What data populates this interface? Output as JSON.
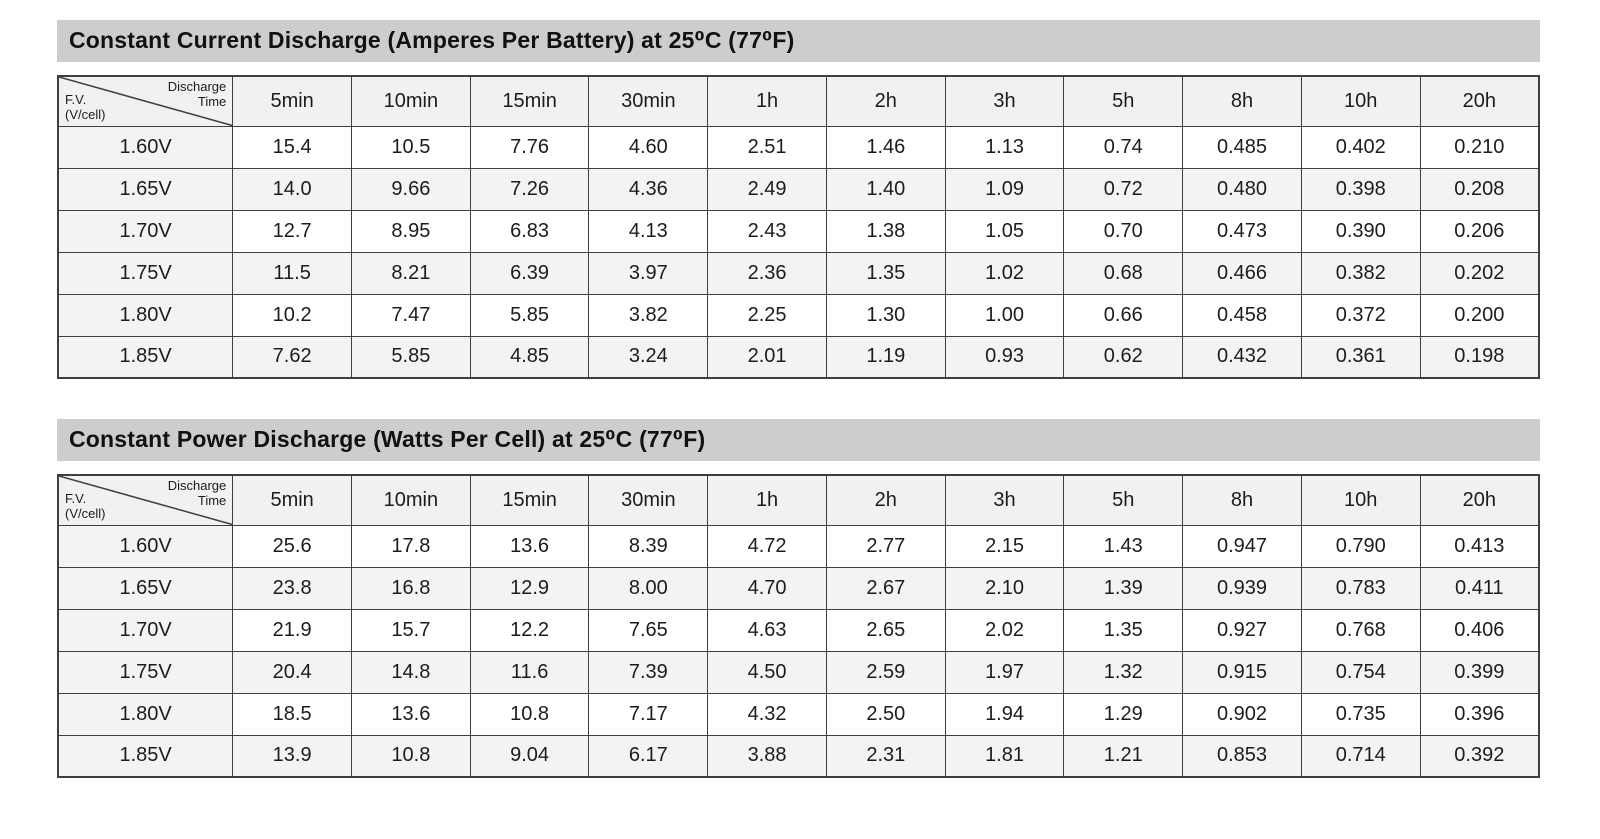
{
  "colors": {
    "title_bar_bg": "#cdcdcd",
    "header_row_bg": "#f1f1f1",
    "shaded_row_bg": "#f3f3f3",
    "row_bg": "#ffffff",
    "border": "#3f3f3f",
    "text": "#1c1c1c"
  },
  "tables": [
    {
      "title": "Constant Current Discharge (Amperes Per Battery) at 25⁰C (77⁰F)",
      "corner": {
        "top_right": "Discharge\nTime",
        "bottom_left": "F.V.\n(V/cell)"
      },
      "columns": [
        "5min",
        "10min",
        "15min",
        "30min",
        "1h",
        "2h",
        "3h",
        "5h",
        "8h",
        "10h",
        "20h"
      ],
      "rows": [
        {
          "label": "1.60V",
          "values": [
            "15.4",
            "10.5",
            "7.76",
            "4.60",
            "2.51",
            "1.46",
            "1.13",
            "0.74",
            "0.485",
            "0.402",
            "0.210"
          ]
        },
        {
          "label": "1.65V",
          "values": [
            "14.0",
            "9.66",
            "7.26",
            "4.36",
            "2.49",
            "1.40",
            "1.09",
            "0.72",
            "0.480",
            "0.398",
            "0.208"
          ]
        },
        {
          "label": "1.70V",
          "values": [
            "12.7",
            "8.95",
            "6.83",
            "4.13",
            "2.43",
            "1.38",
            "1.05",
            "0.70",
            "0.473",
            "0.390",
            "0.206"
          ]
        },
        {
          "label": "1.75V",
          "values": [
            "11.5",
            "8.21",
            "6.39",
            "3.97",
            "2.36",
            "1.35",
            "1.02",
            "0.68",
            "0.466",
            "0.382",
            "0.202"
          ]
        },
        {
          "label": "1.80V",
          "values": [
            "10.2",
            "7.47",
            "5.85",
            "3.82",
            "2.25",
            "1.30",
            "1.00",
            "0.66",
            "0.458",
            "0.372",
            "0.200"
          ]
        },
        {
          "label": "1.85V",
          "values": [
            "7.62",
            "5.85",
            "4.85",
            "3.24",
            "2.01",
            "1.19",
            "0.93",
            "0.62",
            "0.432",
            "0.361",
            "0.198"
          ]
        }
      ]
    },
    {
      "title": "Constant Power Discharge (Watts Per Cell) at 25⁰C (77⁰F)",
      "corner": {
        "top_right": "Discharge\nTime",
        "bottom_left": "F.V.\n(V/cell)"
      },
      "columns": [
        "5min",
        "10min",
        "15min",
        "30min",
        "1h",
        "2h",
        "3h",
        "5h",
        "8h",
        "10h",
        "20h"
      ],
      "rows": [
        {
          "label": "1.60V",
          "values": [
            "25.6",
            "17.8",
            "13.6",
            "8.39",
            "4.72",
            "2.77",
            "2.15",
            "1.43",
            "0.947",
            "0.790",
            "0.413"
          ]
        },
        {
          "label": "1.65V",
          "values": [
            "23.8",
            "16.8",
            "12.9",
            "8.00",
            "4.70",
            "2.67",
            "2.10",
            "1.39",
            "0.939",
            "0.783",
            "0.411"
          ]
        },
        {
          "label": "1.70V",
          "values": [
            "21.9",
            "15.7",
            "12.2",
            "7.65",
            "4.63",
            "2.65",
            "2.02",
            "1.35",
            "0.927",
            "0.768",
            "0.406"
          ]
        },
        {
          "label": "1.75V",
          "values": [
            "20.4",
            "14.8",
            "11.6",
            "7.39",
            "4.50",
            "2.59",
            "1.97",
            "1.32",
            "0.915",
            "0.754",
            "0.399"
          ]
        },
        {
          "label": "1.80V",
          "values": [
            "18.5",
            "13.6",
            "10.8",
            "7.17",
            "4.32",
            "2.50",
            "1.94",
            "1.29",
            "0.902",
            "0.735",
            "0.396"
          ]
        },
        {
          "label": "1.85V",
          "values": [
            "13.9",
            "10.8",
            "9.04",
            "6.17",
            "3.88",
            "2.31",
            "1.81",
            "1.21",
            "0.853",
            "0.714",
            "0.392"
          ]
        }
      ]
    }
  ]
}
